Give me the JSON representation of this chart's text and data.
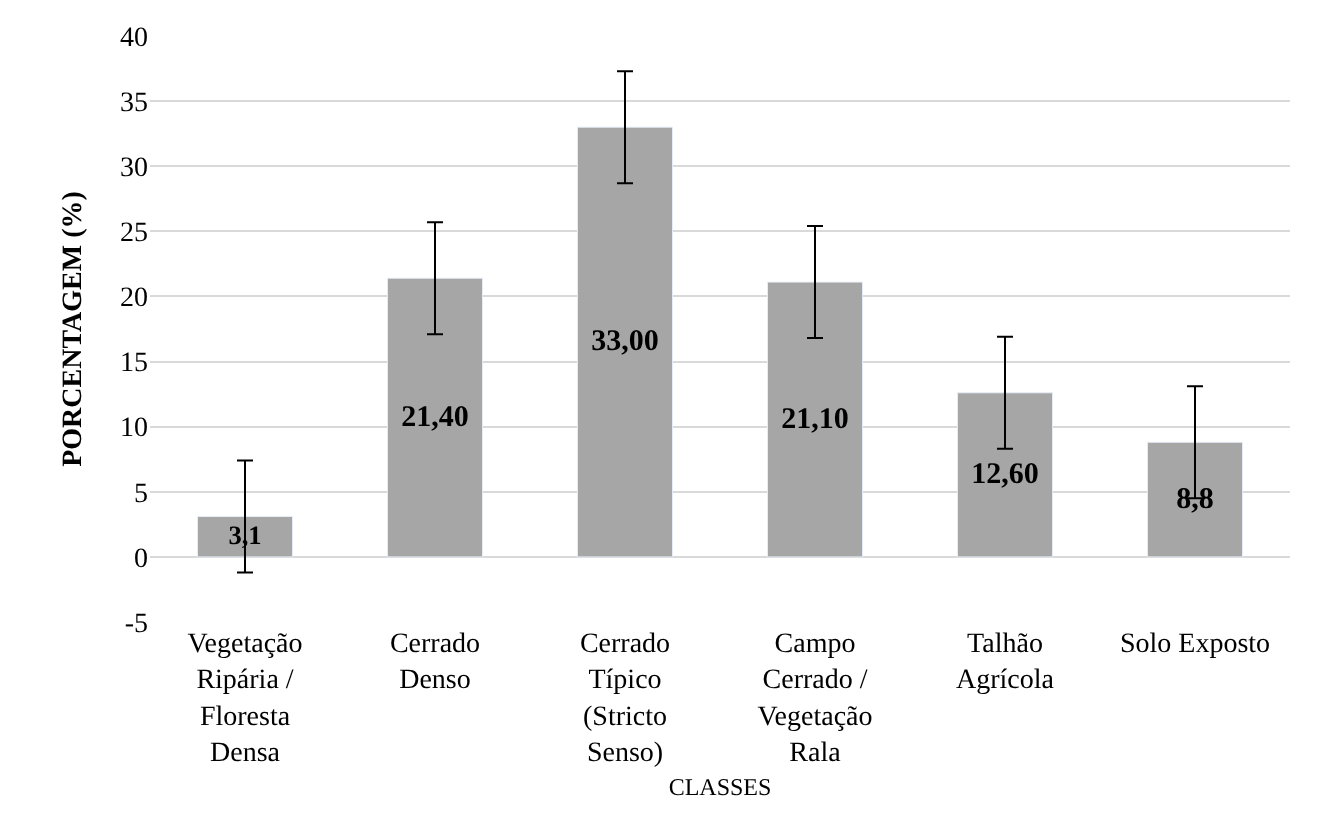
{
  "chart_data": {
    "type": "bar",
    "xlabel": "CLASSES",
    "ylabel": "PORCENTAGEM (%)",
    "categories": [
      "Vegetação Ripária / Floresta Densa",
      "Cerrado Denso",
      "Cerrado Típico (Stricto Senso)",
      "Campo Cerrado / Vegetação Rala",
      "Talhão Agrícola",
      "Solo Exposto"
    ],
    "values": [
      3.1,
      21.4,
      33.0,
      21.1,
      12.6,
      8.8
    ],
    "value_labels": [
      "3,1",
      "21,40",
      "33,00",
      "21,10",
      "12,60",
      "8,8"
    ],
    "errors": [
      4.3,
      4.3,
      4.3,
      4.3,
      4.3,
      4.3
    ],
    "color": "#a6a6a6",
    "ylim": [
      -5,
      40
    ],
    "yticks": [
      -5,
      0,
      5,
      10,
      15,
      20,
      25,
      30,
      35,
      40
    ],
    "grid": "y"
  }
}
